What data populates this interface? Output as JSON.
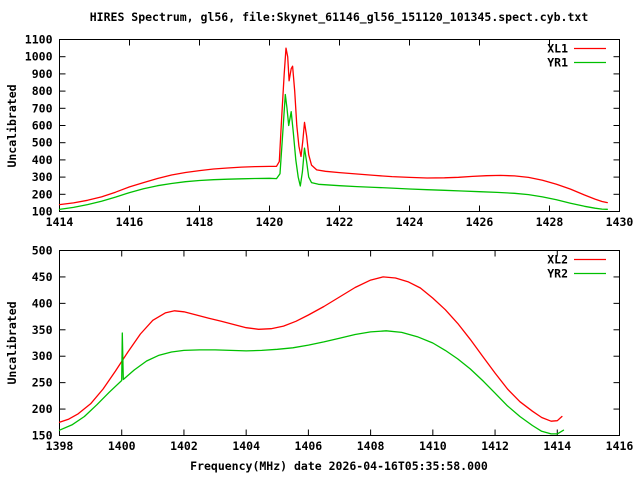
{
  "title": "HIRES Spectrum, gl56, file:Skynet_61146_gl56_151120_101345.spect.cyb.txt",
  "colors": {
    "series_red": "#ff0000",
    "series_green": "#00c000",
    "foreground": "#000000",
    "background": "#ffffff"
  },
  "chart_data": [
    {
      "type": "line",
      "panel": "top",
      "ylabel": "Uncalibrated",
      "xlabel": "",
      "xlim": [
        1414,
        1430
      ],
      "ylim": [
        100,
        1100
      ],
      "xtick_step": 2,
      "ytick_step": 100,
      "grid": false,
      "legend_position": "top-right",
      "series": [
        {
          "name": "XL1",
          "color": "#ff0000",
          "points": [
            [
              1414.0,
              140
            ],
            [
              1414.4,
              150
            ],
            [
              1414.8,
              165
            ],
            [
              1415.2,
              185
            ],
            [
              1415.6,
              212
            ],
            [
              1416.0,
              243
            ],
            [
              1416.4,
              268
            ],
            [
              1416.8,
              292
            ],
            [
              1417.2,
              312
            ],
            [
              1417.6,
              327
            ],
            [
              1418.0,
              338
            ],
            [
              1418.4,
              347
            ],
            [
              1418.8,
              353
            ],
            [
              1419.2,
              358
            ],
            [
              1419.6,
              361
            ],
            [
              1420.0,
              362
            ],
            [
              1420.2,
              363
            ],
            [
              1420.28,
              390
            ],
            [
              1420.35,
              650
            ],
            [
              1420.42,
              900
            ],
            [
              1420.47,
              1050
            ],
            [
              1420.52,
              1000
            ],
            [
              1420.56,
              860
            ],
            [
              1420.62,
              930
            ],
            [
              1420.66,
              945
            ],
            [
              1420.72,
              800
            ],
            [
              1420.78,
              600
            ],
            [
              1420.84,
              480
            ],
            [
              1420.9,
              420
            ],
            [
              1420.95,
              510
            ],
            [
              1421.0,
              618
            ],
            [
              1421.06,
              540
            ],
            [
              1421.12,
              430
            ],
            [
              1421.2,
              370
            ],
            [
              1421.35,
              342
            ],
            [
              1421.6,
              334
            ],
            [
              1422.0,
              326
            ],
            [
              1422.5,
              318
            ],
            [
              1423.0,
              310
            ],
            [
              1423.5,
              303
            ],
            [
              1424.0,
              298
            ],
            [
              1424.5,
              295
            ],
            [
              1425.0,
              296
            ],
            [
              1425.4,
              299
            ],
            [
              1425.8,
              304
            ],
            [
              1426.2,
              308
            ],
            [
              1426.6,
              310
            ],
            [
              1427.0,
              307
            ],
            [
              1427.4,
              298
            ],
            [
              1427.8,
              282
            ],
            [
              1428.2,
              258
            ],
            [
              1428.6,
              230
            ],
            [
              1429.0,
              196
            ],
            [
              1429.3,
              172
            ],
            [
              1429.5,
              158
            ],
            [
              1429.65,
              152
            ]
          ]
        },
        {
          "name": "YR1",
          "color": "#00c000",
          "points": [
            [
              1414.0,
              112
            ],
            [
              1414.4,
              124
            ],
            [
              1414.8,
              140
            ],
            [
              1415.2,
              160
            ],
            [
              1415.6,
              184
            ],
            [
              1416.0,
              210
            ],
            [
              1416.4,
              232
            ],
            [
              1416.8,
              250
            ],
            [
              1417.2,
              263
            ],
            [
              1417.6,
              273
            ],
            [
              1418.0,
              280
            ],
            [
              1418.4,
              285
            ],
            [
              1418.8,
              288
            ],
            [
              1419.2,
              290
            ],
            [
              1419.6,
              292
            ],
            [
              1420.0,
              293
            ],
            [
              1420.2,
              291
            ],
            [
              1420.3,
              320
            ],
            [
              1420.38,
              560
            ],
            [
              1420.45,
              780
            ],
            [
              1420.5,
              700
            ],
            [
              1420.55,
              600
            ],
            [
              1420.62,
              680
            ],
            [
              1420.68,
              560
            ],
            [
              1420.75,
              400
            ],
            [
              1420.82,
              300
            ],
            [
              1420.88,
              248
            ],
            [
              1420.94,
              330
            ],
            [
              1421.0,
              468
            ],
            [
              1421.06,
              390
            ],
            [
              1421.12,
              300
            ],
            [
              1421.2,
              268
            ],
            [
              1421.4,
              258
            ],
            [
              1422.0,
              250
            ],
            [
              1422.5,
              245
            ],
            [
              1423.0,
              240
            ],
            [
              1423.5,
              236
            ],
            [
              1424.0,
              231
            ],
            [
              1424.5,
              227
            ],
            [
              1425.0,
              223
            ],
            [
              1425.5,
              219
            ],
            [
              1426.0,
              215
            ],
            [
              1426.5,
              211
            ],
            [
              1427.0,
              206
            ],
            [
              1427.4,
              198
            ],
            [
              1427.8,
              185
            ],
            [
              1428.2,
              168
            ],
            [
              1428.6,
              148
            ],
            [
              1429.0,
              130
            ],
            [
              1429.3,
              119
            ],
            [
              1429.5,
              114
            ],
            [
              1429.65,
              113
            ]
          ]
        }
      ]
    },
    {
      "type": "line",
      "panel": "bottom",
      "ylabel": "Uncalibrated",
      "xlabel": "Frequency(MHz) date 2026-04-16T05:35:58.000",
      "xlim": [
        1398,
        1416
      ],
      "ylim": [
        150,
        500
      ],
      "xtick_step": 2,
      "ytick_step": 50,
      "grid": false,
      "legend_position": "top-right",
      "series": [
        {
          "name": "XL2",
          "color": "#ff0000",
          "points": [
            [
              1398.0,
              175
            ],
            [
              1398.3,
              181
            ],
            [
              1398.6,
              191
            ],
            [
              1399.0,
              210
            ],
            [
              1399.4,
              238
            ],
            [
              1399.8,
              272
            ],
            [
              1400.2,
              308
            ],
            [
              1400.6,
              342
            ],
            [
              1401.0,
              368
            ],
            [
              1401.4,
              382
            ],
            [
              1401.7,
              386
            ],
            [
              1402.0,
              384
            ],
            [
              1402.4,
              378
            ],
            [
              1402.8,
              372
            ],
            [
              1403.2,
              366
            ],
            [
              1403.6,
              360
            ],
            [
              1404.0,
              354
            ],
            [
              1404.4,
              351
            ],
            [
              1404.8,
              352
            ],
            [
              1405.2,
              357
            ],
            [
              1405.6,
              366
            ],
            [
              1406.0,
              378
            ],
            [
              1406.5,
              394
            ],
            [
              1407.0,
              412
            ],
            [
              1407.5,
              430
            ],
            [
              1408.0,
              444
            ],
            [
              1408.4,
              450
            ],
            [
              1408.8,
              448
            ],
            [
              1409.2,
              441
            ],
            [
              1409.6,
              429
            ],
            [
              1410.0,
              410
            ],
            [
              1410.4,
              388
            ],
            [
              1410.8,
              362
            ],
            [
              1411.2,
              332
            ],
            [
              1411.6,
              300
            ],
            [
              1412.0,
              268
            ],
            [
              1412.4,
              238
            ],
            [
              1412.8,
              214
            ],
            [
              1413.2,
              196
            ],
            [
              1413.5,
              184
            ],
            [
              1413.8,
              177
            ],
            [
              1414.0,
              178
            ],
            [
              1414.15,
              186
            ]
          ]
        },
        {
          "name": "YR2",
          "color": "#00c000",
          "points": [
            [
              1398.0,
              160
            ],
            [
              1398.4,
              170
            ],
            [
              1398.8,
              186
            ],
            [
              1399.2,
              208
            ],
            [
              1399.6,
              232
            ],
            [
              1400.0,
              254
            ],
            [
              1400.02,
              344
            ],
            [
              1400.05,
              256
            ],
            [
              1400.4,
              274
            ],
            [
              1400.8,
              291
            ],
            [
              1401.2,
              302
            ],
            [
              1401.6,
              308
            ],
            [
              1402.0,
              311
            ],
            [
              1402.5,
              312
            ],
            [
              1403.0,
              312
            ],
            [
              1403.5,
              311
            ],
            [
              1404.0,
              310
            ],
            [
              1404.5,
              311
            ],
            [
              1405.0,
              313
            ],
            [
              1405.5,
              316
            ],
            [
              1406.0,
              321
            ],
            [
              1406.5,
              327
            ],
            [
              1407.0,
              334
            ],
            [
              1407.5,
              341
            ],
            [
              1408.0,
              346
            ],
            [
              1408.5,
              348
            ],
            [
              1409.0,
              345
            ],
            [
              1409.5,
              337
            ],
            [
              1410.0,
              325
            ],
            [
              1410.4,
              311
            ],
            [
              1410.8,
              295
            ],
            [
              1411.2,
              276
            ],
            [
              1411.6,
              254
            ],
            [
              1412.0,
              230
            ],
            [
              1412.4,
              206
            ],
            [
              1412.8,
              186
            ],
            [
              1413.2,
              169
            ],
            [
              1413.5,
              158
            ],
            [
              1413.8,
              153
            ],
            [
              1414.0,
              153
            ],
            [
              1414.2,
              160
            ]
          ]
        }
      ]
    }
  ]
}
